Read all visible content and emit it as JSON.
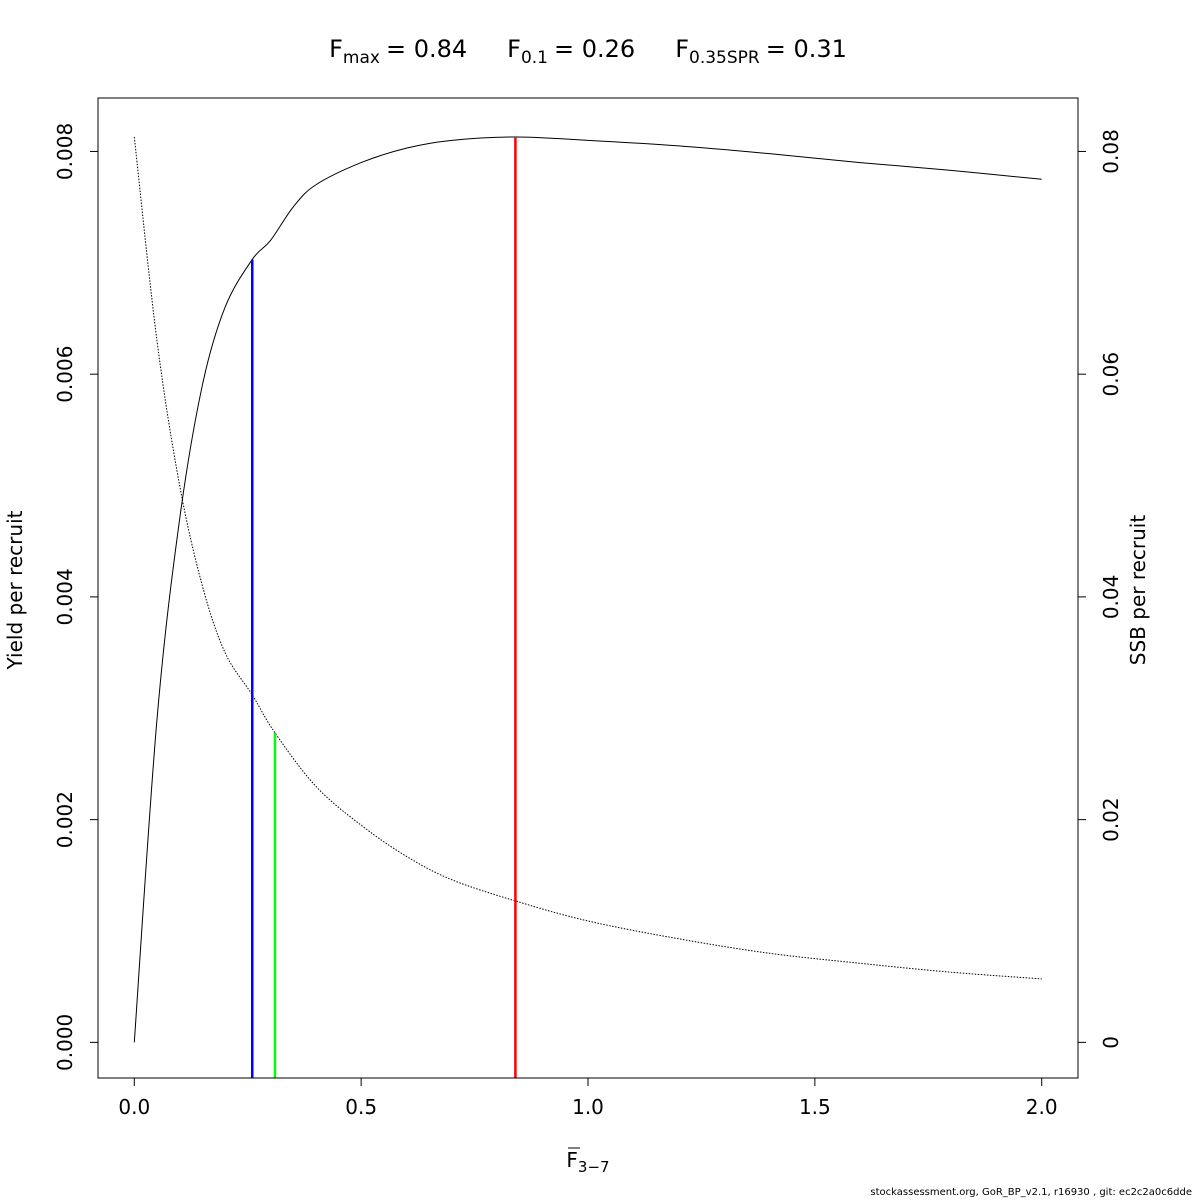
{
  "chart_data": {
    "type": "line",
    "title": {
      "fmax": {
        "base": "F",
        "sub": "max",
        "value": "= 0.84"
      },
      "f01": {
        "base": "F",
        "sub": "0.1",
        "value": "= 0.26"
      },
      "fspr": {
        "base": "F",
        "sub": "0.35SPR",
        "value": "= 0.31"
      }
    },
    "xlabel": {
      "base": "F",
      "sub": "3−7"
    },
    "ylabel_left": "Yield per recruit",
    "ylabel_right": "SSB per recruit",
    "xlim": [
      -0.08,
      2.08
    ],
    "ylim_left": [
      -0.00032,
      0.00848
    ],
    "ylim_right": [
      -0.0032,
      0.0848
    ],
    "x_ticks": [
      0,
      0.5,
      1,
      1.5,
      2
    ],
    "x_tick_labels": [
      "0.0",
      "0.5",
      "1.0",
      "1.5",
      "2.0"
    ],
    "y_left_ticks": [
      0,
      0.002,
      0.004,
      0.006,
      0.008
    ],
    "y_left_tick_labels": [
      "0.000",
      "0.002",
      "0.004",
      "0.006",
      "0.008"
    ],
    "y_right_ticks": [
      0,
      0.02,
      0.04,
      0.06,
      0.08
    ],
    "y_right_tick_labels": [
      "0",
      "0.02",
      "0.04",
      "0.06",
      "0.08"
    ],
    "series": [
      {
        "axis": "left",
        "style": "solid",
        "color": "#000000",
        "x": [
          0,
          0.05,
          0.1,
          0.15,
          0.2,
          0.26,
          0.3,
          0.35,
          0.4,
          0.5,
          0.6,
          0.7,
          0.84,
          1.0,
          1.2,
          1.4,
          1.6,
          1.8,
          2.0
        ],
        "values": [
          0.0,
          0.0029,
          0.0047,
          0.0059,
          0.0066,
          0.00703,
          0.0072,
          0.0075,
          0.0077,
          0.0079,
          0.00803,
          0.0081,
          0.00813,
          0.0081,
          0.00805,
          0.00798,
          0.0079,
          0.00783,
          0.00775
        ]
      },
      {
        "axis": "right",
        "style": "dotted",
        "color": "#000000",
        "x": [
          0,
          0.05,
          0.1,
          0.15,
          0.2,
          0.26,
          0.31,
          0.4,
          0.5,
          0.6,
          0.7,
          0.84,
          1.0,
          1.2,
          1.4,
          1.6,
          1.8,
          2.0
        ],
        "values": [
          0.0813,
          0.063,
          0.05,
          0.041,
          0.035,
          0.0312,
          0.0278,
          0.023,
          0.0195,
          0.0167,
          0.0146,
          0.0127,
          0.0109,
          0.0093,
          0.008,
          0.0071,
          0.0063,
          0.0057
        ]
      }
    ],
    "reference_lines": [
      {
        "x": 0.84,
        "y_top": 0.00813,
        "color": "#ff0000"
      },
      {
        "x": 0.26,
        "y_top": 0.00703,
        "color": "#0000ff"
      },
      {
        "x": 0.31,
        "y_top": 0.00278,
        "color": "#00ff00"
      }
    ]
  },
  "footer_credit": "stockassessment.org, GoR_BP_v2.1, r16930 , git: ec2c2a0c6dde"
}
